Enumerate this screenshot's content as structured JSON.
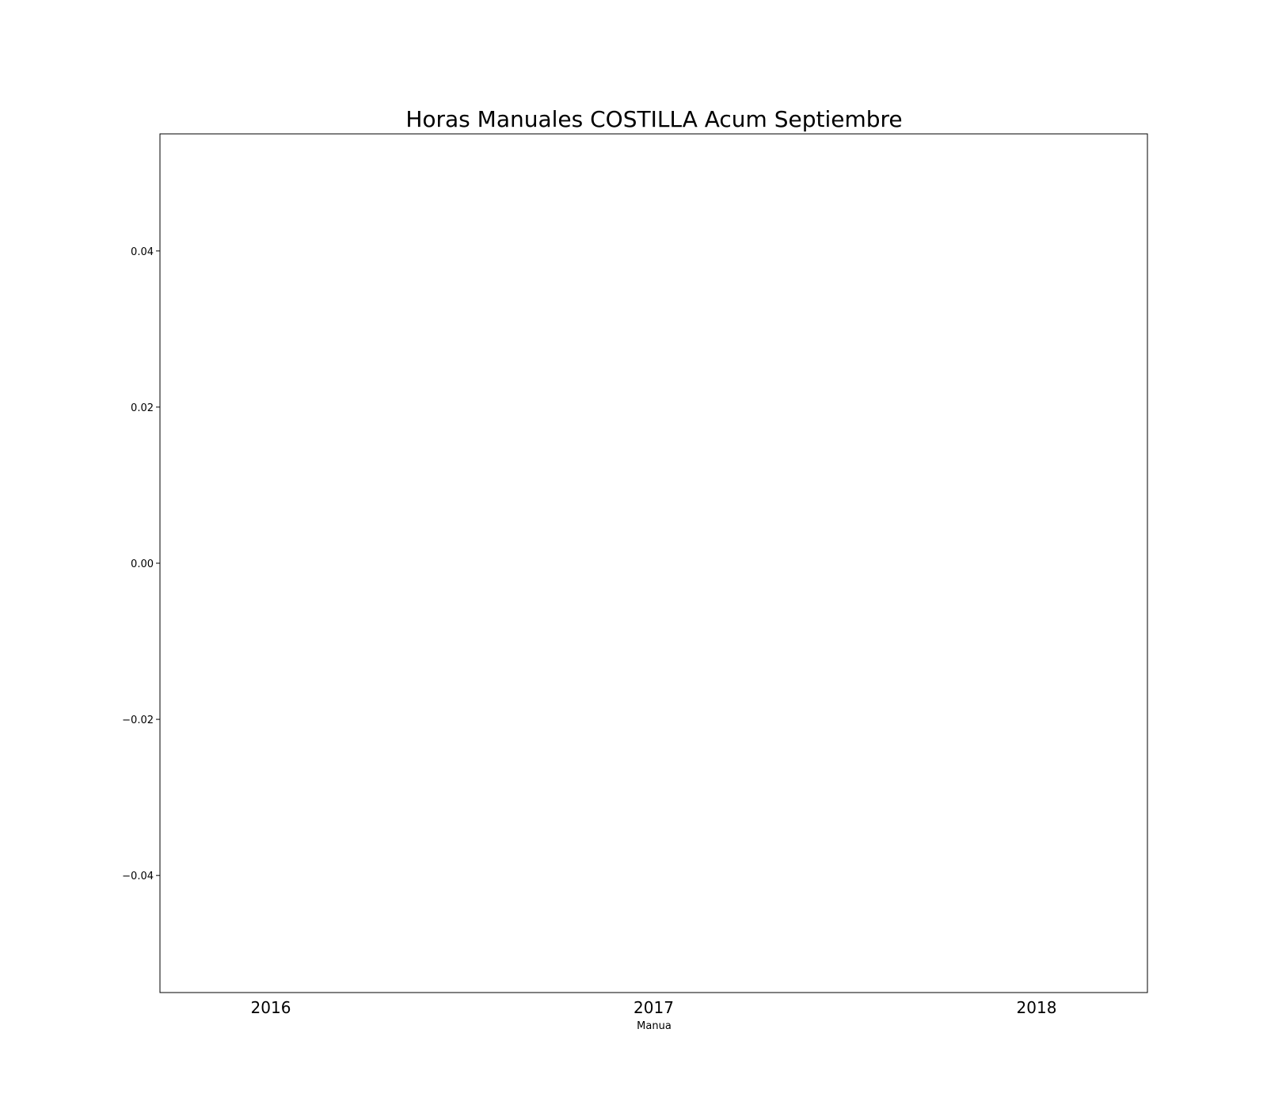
{
  "chart_data": {
    "type": "bar",
    "title": "Horas Manuales COSTILLA Acum Septiembre",
    "xlabel": "Manua",
    "ylabel": "",
    "categories": [
      "2016",
      "2017",
      "2018"
    ],
    "series": [],
    "ylim": [
      -0.055,
      0.055
    ],
    "yticks": [
      0.04,
      0.02,
      0.0,
      -0.02,
      -0.04
    ],
    "ytick_labels": [
      "0.04",
      "0.02",
      "0.00",
      "−0.02",
      "−0.04"
    ],
    "grid": false,
    "legend": "none"
  }
}
